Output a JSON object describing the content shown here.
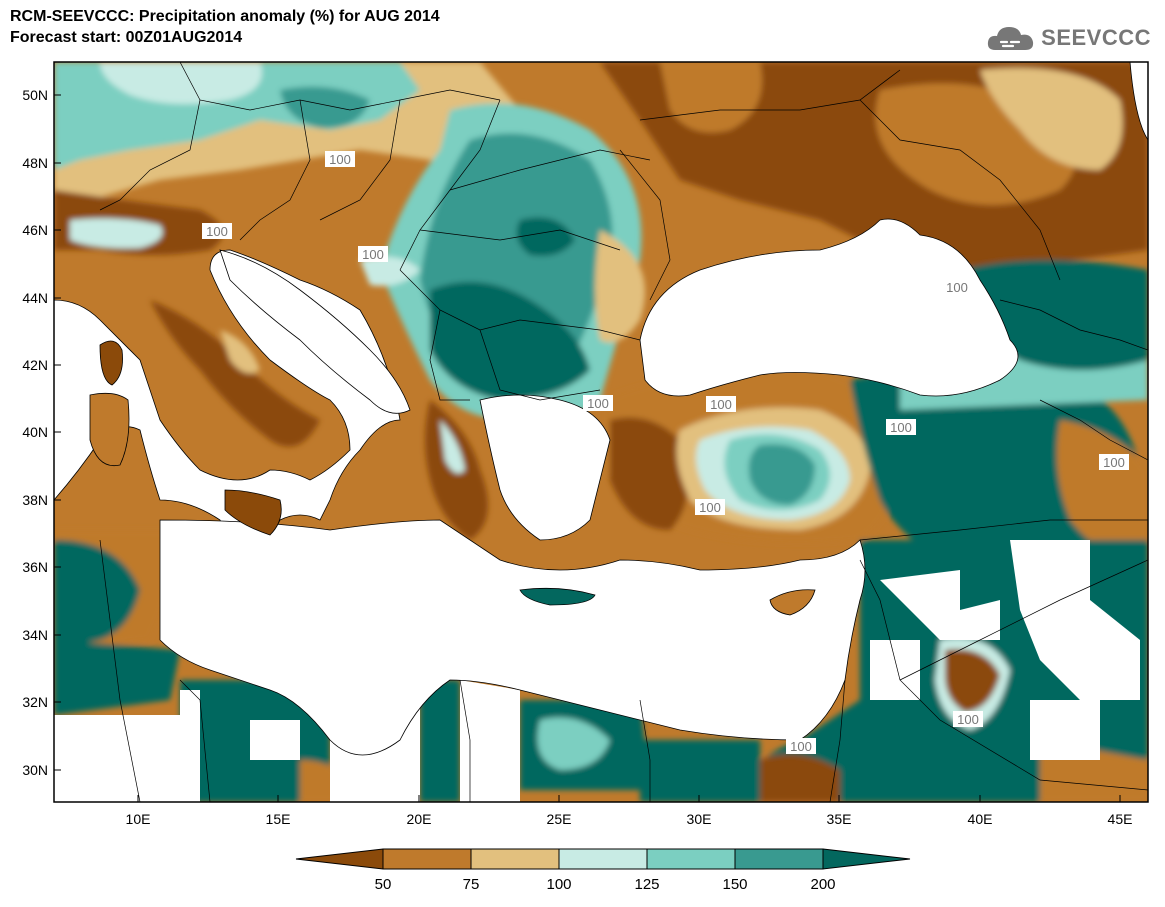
{
  "title": {
    "line1": "RCM-SEEVCCC: Precipitation anomaly (%) for AUG 2014",
    "line2": "Forecast start: 00Z01AUG2014"
  },
  "logo": {
    "text": "SEEVCCC",
    "icon": "cloud-icon"
  },
  "colors": {
    "lt50": "#8B4A0A",
    "c50_75": "#BF7A2C",
    "c75_100": "#E2C07E",
    "c100_125": "#C8EBE4",
    "c125_150": "#7BCFC1",
    "c150_200": "#399A90",
    "gt200": "#03675E",
    "sea": "#FFFFFF",
    "contour": "#A8A8A8"
  },
  "map": {
    "lon_range": [
      7,
      46
    ],
    "lat_range": [
      29,
      51
    ],
    "lat_ticks": [
      "50N",
      "48N",
      "46N",
      "44N",
      "42N",
      "40N",
      "38N",
      "36N",
      "34N",
      "32N",
      "30N"
    ],
    "lon_ticks": [
      "10E",
      "15E",
      "20E",
      "25E",
      "30E",
      "35E",
      "40E",
      "45E"
    ],
    "contour_labels": [
      "100",
      "100",
      "100",
      "100",
      "100",
      "100",
      "100",
      "100",
      "100",
      "100",
      "100"
    ]
  },
  "colorbar": {
    "labels": [
      "50",
      "75",
      "100",
      "125",
      "150",
      "200"
    ]
  }
}
